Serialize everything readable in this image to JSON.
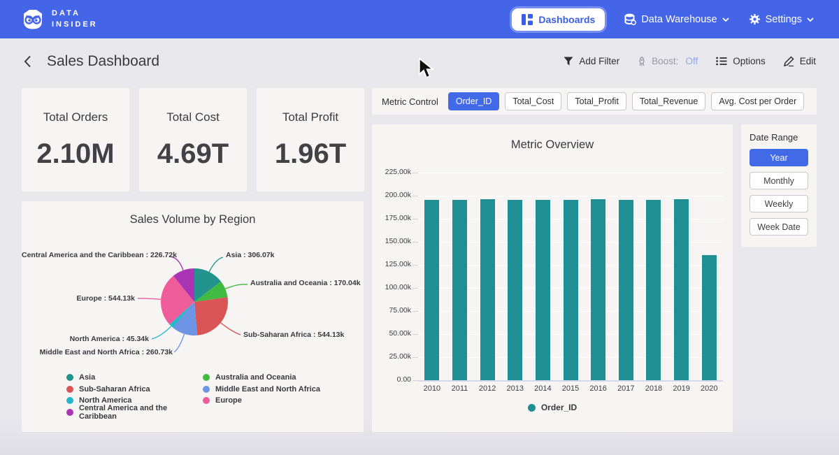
{
  "navbar": {
    "brand_line1": "DATA",
    "brand_line2": "INSIDER",
    "items": [
      {
        "label": "Dashboards"
      },
      {
        "label": "Data Warehouse"
      },
      {
        "label": "Settings"
      }
    ]
  },
  "header": {
    "title": "Sales Dashboard",
    "actions": {
      "add_filter": "Add Filter",
      "boost_label": "Boost:",
      "boost_value": "Off",
      "options": "Options",
      "edit": "Edit"
    }
  },
  "kpis": [
    {
      "label": "Total Orders",
      "value": "2.10M"
    },
    {
      "label": "Total Cost",
      "value": "4.69T"
    },
    {
      "label": "Total Profit",
      "value": "1.96T"
    }
  ],
  "metric_control": {
    "label": "Metric Control",
    "options": [
      {
        "label": "Order_ID",
        "selected": true
      },
      {
        "label": "Total_Cost",
        "selected": false
      },
      {
        "label": "Total_Profit",
        "selected": false
      },
      {
        "label": "Total_Revenue",
        "selected": false
      },
      {
        "label": "Avg. Cost per Order",
        "selected": false
      }
    ]
  },
  "date_range": {
    "label": "Date Range",
    "options": [
      {
        "label": "Year",
        "selected": true
      },
      {
        "label": "Monthly",
        "selected": false
      },
      {
        "label": "Weekly",
        "selected": false
      },
      {
        "label": "Week Date",
        "selected": false
      }
    ]
  },
  "colors": {
    "navbar": "#4565e8",
    "accent": "#4169e8",
    "card_bg": "#f6f5f4",
    "page_bg": "#e8e7ec",
    "boost_off": "#93a7ea"
  },
  "chart_data": [
    {
      "type": "pie",
      "title": "Sales Volume by Region",
      "categories": [
        "Asia",
        "Australia and Oceania",
        "Sub-Saharan Africa",
        "Middle East and North Africa",
        "North America",
        "Europe",
        "Central America and the Caribbean"
      ],
      "values": [
        306.07,
        170.04,
        544.13,
        260.73,
        45.34,
        544.13,
        226.72
      ],
      "unit": "k",
      "colors": [
        "#22948d",
        "#41ba41",
        "#d95555",
        "#6c95e6",
        "#22b7c9",
        "#ee5d99",
        "#a935b5"
      ],
      "callouts": [
        "Asia : 306.07k",
        "Australia and Oceania : 170.04k",
        "Sub-Saharan Africa : 544.13k",
        "Middle East and North Africa : 260.73k",
        "North America : 45.34k",
        "Europe : 544.13k",
        "Central America and the Caribbean : 226.72k"
      ],
      "legend_order": [
        0,
        2,
        4,
        6,
        1,
        3,
        5
      ],
      "legend_position": "bottom"
    },
    {
      "type": "bar",
      "title": "Metric Overview",
      "categories": [
        "2010",
        "2011",
        "2012",
        "2013",
        "2014",
        "2015",
        "2016",
        "2017",
        "2018",
        "2019",
        "2020"
      ],
      "series": [
        {
          "name": "Order_ID",
          "values": [
            195.5,
            195.4,
            196.5,
            195.6,
            195.5,
            195.6,
            196.3,
            195.8,
            195.5,
            195.9,
            135.6
          ]
        }
      ],
      "unit": "k",
      "ylim": [
        0,
        237.5
      ],
      "yticks": [
        "0.00",
        "25.00k",
        "50.00k",
        "75.00k",
        "100.00k",
        "125.00k",
        "150.00k",
        "175.00k",
        "200.00k",
        "225.00k"
      ],
      "grid": true,
      "bar_color": "#1f8f94",
      "legend_position": "bottom"
    }
  ]
}
